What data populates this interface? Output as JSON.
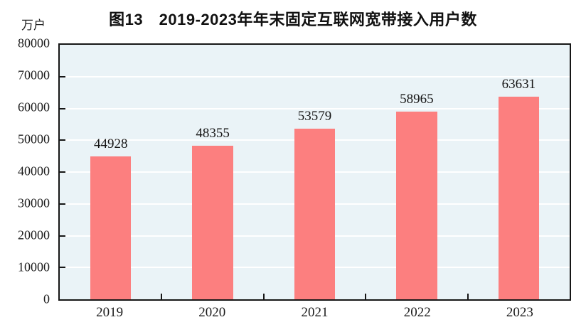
{
  "chart_data": {
    "type": "bar",
    "title": "图13　2019-2023年年末固定互联网宽带接入用户数",
    "unit_label": "万户",
    "categories": [
      "2019",
      "2020",
      "2021",
      "2022",
      "2023"
    ],
    "values": [
      44928,
      48355,
      53579,
      58965,
      63631
    ],
    "bar_value_labels": [
      "44928",
      "48355",
      "53579",
      "58965",
      "63631"
    ],
    "ylim": [
      0,
      80000
    ],
    "yticks": [
      0,
      10000,
      20000,
      30000,
      40000,
      50000,
      60000,
      70000,
      80000
    ],
    "grid": true,
    "legend": "none",
    "gridline_interval": 10000
  },
  "colors": {
    "bar": "#FC7F7F",
    "plot_background": "#EAF3F7",
    "gridline": "#FFFFFF",
    "axis_border": "#161616",
    "text": "#1C1C1C",
    "page_background": "#FFFFFF"
  }
}
